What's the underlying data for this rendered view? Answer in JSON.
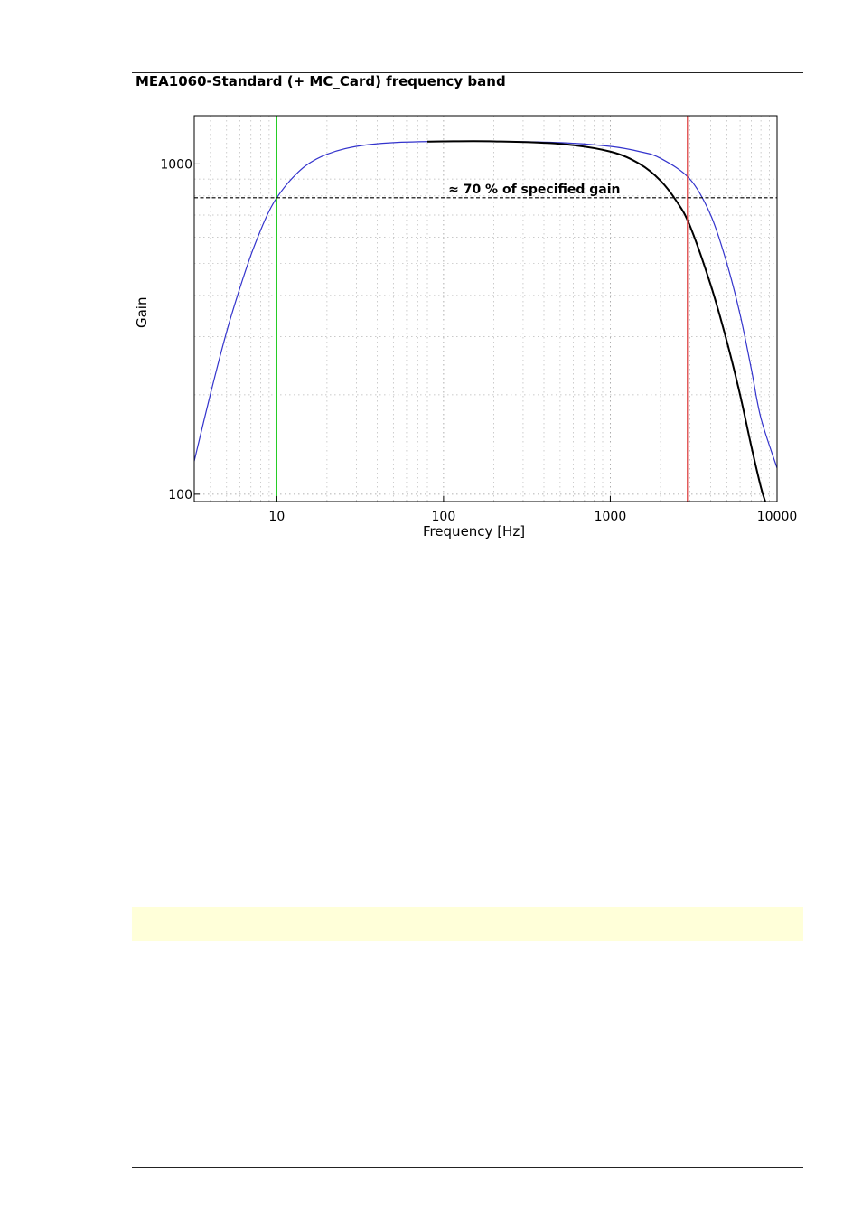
{
  "page": {
    "section_title": "MEA1060-Standard (+ MC_Card) frequency band"
  },
  "chart_data": {
    "type": "line",
    "title": "",
    "xlabel": "Frequency [Hz]",
    "ylabel": "Gain",
    "x_scale": "log",
    "y_scale": "log",
    "xlim": [
      3.2,
      10000
    ],
    "ylim": [
      95,
      1400
    ],
    "x_ticks": [
      10,
      100,
      1000,
      10000
    ],
    "x_tick_labels": [
      "10",
      "100",
      "1000",
      "10000"
    ],
    "y_ticks": [
      100,
      1000
    ],
    "y_tick_labels": [
      "100",
      "1000"
    ],
    "grid": true,
    "reference_lines": [
      {
        "orientation": "vertical",
        "x": 10,
        "color": "#22cc22"
      },
      {
        "orientation": "vertical",
        "x": 2900,
        "color": "#dd4444"
      },
      {
        "orientation": "horizontal",
        "y": 790,
        "color": "#000000",
        "style": "dashed"
      }
    ],
    "annotation": {
      "text": "≈ 70 % of specified gain",
      "x": 350,
      "y": 790
    },
    "series": [
      {
        "color": "#3333cc",
        "x": [
          3.2,
          4,
          5,
          6,
          7,
          8,
          9,
          10,
          12,
          15,
          20,
          30,
          50,
          100,
          200,
          500,
          1000,
          1500,
          2000,
          3000,
          4000,
          5000,
          6000,
          7000,
          8000,
          10000
        ],
        "y": [
          126,
          201,
          310,
          420,
          530,
          630,
          720,
          790,
          890,
          990,
          1070,
          1130,
          1160,
          1170,
          1170,
          1160,
          1130,
          1090,
          1040,
          900,
          700,
          500,
          350,
          240,
          170,
          120
        ]
      },
      {
        "color": "#000000",
        "x": [
          80,
          100,
          200,
          500,
          1000,
          1500,
          2000,
          2500,
          3000,
          4000,
          5000,
          6000,
          7000,
          8000,
          8500
        ],
        "y": [
          1168,
          1170,
          1170,
          1150,
          1090,
          1000,
          890,
          770,
          650,
          430,
          290,
          200,
          140,
          105,
          95
        ]
      }
    ]
  }
}
